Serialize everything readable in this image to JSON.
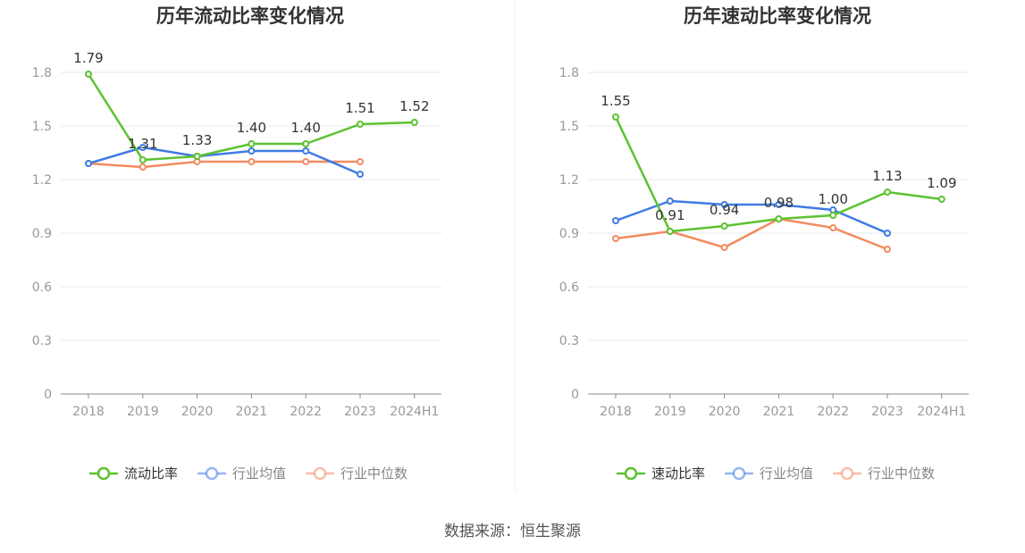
{
  "chart_data": [
    {
      "type": "line",
      "title": "历年流动比率变化情况",
      "categories": [
        "2018",
        "2019",
        "2020",
        "2021",
        "2022",
        "2023",
        "2024H1"
      ],
      "ylim": [
        0,
        1.8
      ],
      "yticks": [
        "0",
        "0.3",
        "0.6",
        "0.9",
        "1.2",
        "1.5",
        "1.8"
      ],
      "grid": true,
      "legend_position": "bottom",
      "series": [
        {
          "name": "流动比率",
          "color": "#5cc230",
          "labels": true,
          "values": [
            1.79,
            1.31,
            1.33,
            1.4,
            1.4,
            1.51,
            1.52
          ],
          "value_labels": [
            "1.79",
            "1.31",
            "1.33",
            "1.40",
            "1.40",
            "1.51",
            "1.52"
          ]
        },
        {
          "name": "行业均值",
          "color": "#3f7be3",
          "labels": false,
          "values": [
            1.29,
            1.38,
            1.33,
            1.36,
            1.36,
            1.23,
            null
          ]
        },
        {
          "name": "行业中位数",
          "color": "#f28b5e",
          "labels": false,
          "values": [
            1.29,
            1.27,
            1.3,
            1.3,
            1.3,
            1.3,
            null
          ]
        }
      ]
    },
    {
      "type": "line",
      "title": "历年速动比率变化情况",
      "categories": [
        "2018",
        "2019",
        "2020",
        "2021",
        "2022",
        "2023",
        "2024H1"
      ],
      "ylim": [
        0,
        1.8
      ],
      "yticks": [
        "0",
        "0.3",
        "0.6",
        "0.9",
        "1.2",
        "1.5",
        "1.8"
      ],
      "grid": true,
      "legend_position": "bottom",
      "series": [
        {
          "name": "速动比率",
          "color": "#5cc230",
          "labels": true,
          "values": [
            1.55,
            0.91,
            0.94,
            0.98,
            1.0,
            1.13,
            1.09
          ],
          "value_labels": [
            "1.55",
            "0.91",
            "0.94",
            "0.98",
            "1.00",
            "1.13",
            "1.09"
          ]
        },
        {
          "name": "行业均值",
          "color": "#3f7be3",
          "labels": false,
          "values": [
            0.97,
            1.08,
            1.06,
            1.06,
            1.03,
            0.9,
            null
          ]
        },
        {
          "name": "行业中位数",
          "color": "#f28b5e",
          "labels": false,
          "values": [
            0.87,
            0.91,
            0.82,
            0.98,
            0.93,
            0.81,
            null
          ]
        }
      ]
    }
  ],
  "footer": {
    "source": "数据来源：恒生聚源"
  }
}
